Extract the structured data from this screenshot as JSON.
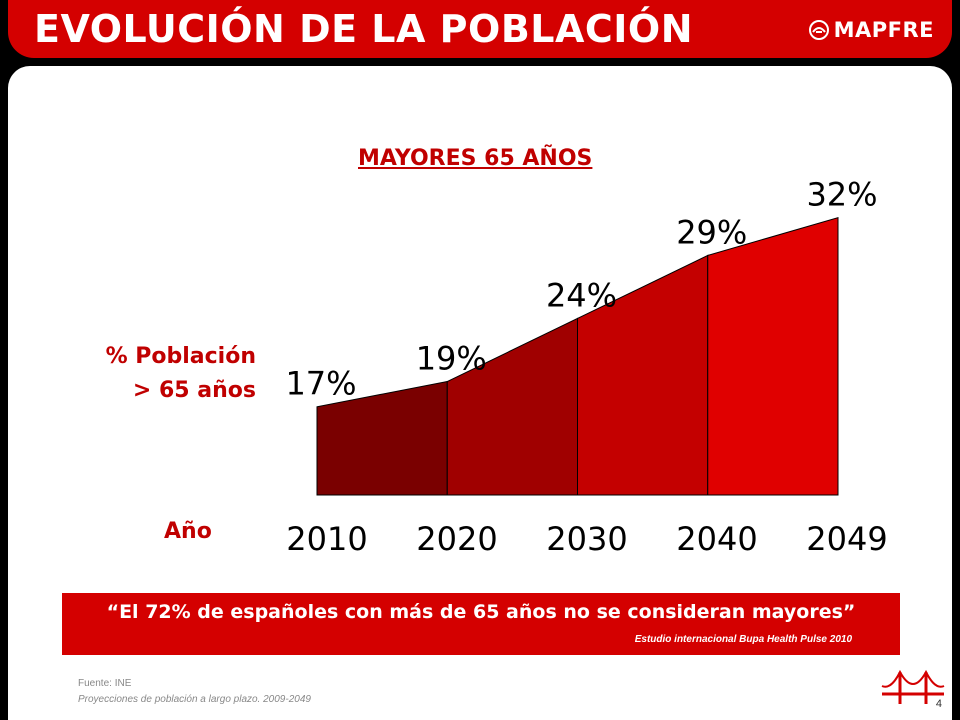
{
  "header": {
    "title": "EVOLUCIÓN DE LA POBLACIÓN",
    "brand": "MAPFRE"
  },
  "chart_data": {
    "type": "area",
    "title": "MAYORES 65 AÑOS",
    "ylabel_line1": "% Población",
    "ylabel_line2": "> 65 años",
    "xlabel": "Año",
    "categories": [
      "2010",
      "2020",
      "2030",
      "2040",
      "2049"
    ],
    "values": [
      17,
      19,
      24,
      29,
      32
    ],
    "labels": [
      "17%",
      "19%",
      "24%",
      "29%",
      "32%"
    ],
    "ylim": [
      10,
      33
    ],
    "colors": [
      "#7a0000",
      "#a00000",
      "#c40000",
      "#e00000",
      "#ff0000"
    ]
  },
  "quote": {
    "text": "“El 72% de españoles con más de 65 años no se consideran mayores”",
    "source": "Estudio internacional Bupa Health Pulse 2010"
  },
  "footer": {
    "source_label": "Fuente: INE",
    "source_detail": "Proyecciones  de población a largo plazo.  2009-2049",
    "page_number": "4"
  }
}
